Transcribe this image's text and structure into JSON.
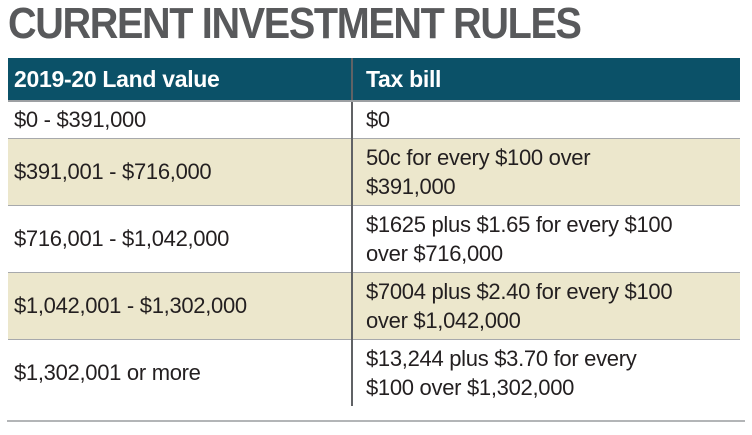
{
  "title": "CURRENT INVESTMENT RULES",
  "colors": {
    "header_background": "#0b5168",
    "header_text": "#ffffff",
    "row_background": "#ffffff",
    "row_alt_background": "#ece7cc",
    "title_text": "#58595b",
    "cell_text": "#231f20",
    "column_divider": "#606265",
    "row_separator": "#a7a9ac",
    "bottom_rule": "#b3b5b7"
  },
  "chart_data": {
    "type": "table",
    "title": "CURRENT INVESTMENT RULES",
    "columns": [
      "2019-20 Land value",
      "Tax bill"
    ],
    "rows": [
      [
        "$0 - $391,000",
        "$0"
      ],
      [
        "$391,001 - $716,000",
        "50c for every $100 over\n$391,000"
      ],
      [
        "$716,001 - $1,042,000",
        "$1625 plus $1.65 for every $100\nover $716,000"
      ],
      [
        "$1,042,001 - $1,302,000",
        "$7004 plus $2.40 for every $100\nover $1,042,000"
      ],
      [
        "$1,302,001 or more",
        "$13,244 plus $3.70 for every\n$100 over $1,302,000"
      ]
    ]
  }
}
